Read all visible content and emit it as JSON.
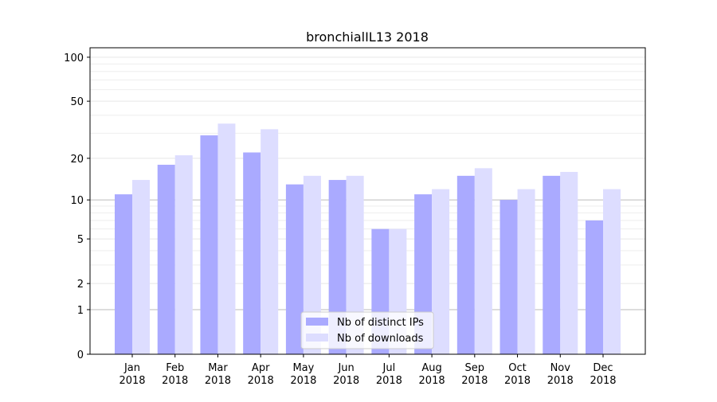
{
  "chart_data": {
    "type": "bar",
    "title": "bronchialIL13 2018",
    "xlabel": "",
    "ylabel": "",
    "yscale": "log(y+1)",
    "ylim": [
      0,
      116
    ],
    "yticks": [
      0,
      1,
      2,
      5,
      10,
      20,
      50,
      100
    ],
    "grid": true,
    "legend_position": "bottom-center",
    "categories": [
      "Jan\n2018",
      "Feb\n2018",
      "Mar\n2018",
      "Apr\n2018",
      "May\n2018",
      "Jun\n2018",
      "Jul\n2018",
      "Aug\n2018",
      "Sep\n2018",
      "Oct\n2018",
      "Nov\n2018",
      "Dec\n2018"
    ],
    "series": [
      {
        "name": "Nb of distinct IPs",
        "color": "#aaaaff",
        "values": [
          11,
          18,
          29,
          22,
          13,
          14,
          6,
          11,
          15,
          10,
          15,
          7
        ]
      },
      {
        "name": "Nb of downloads",
        "color": "#ddddff",
        "values": [
          14,
          21,
          35,
          32,
          15,
          15,
          6,
          12,
          17,
          12,
          16,
          12
        ]
      }
    ]
  }
}
